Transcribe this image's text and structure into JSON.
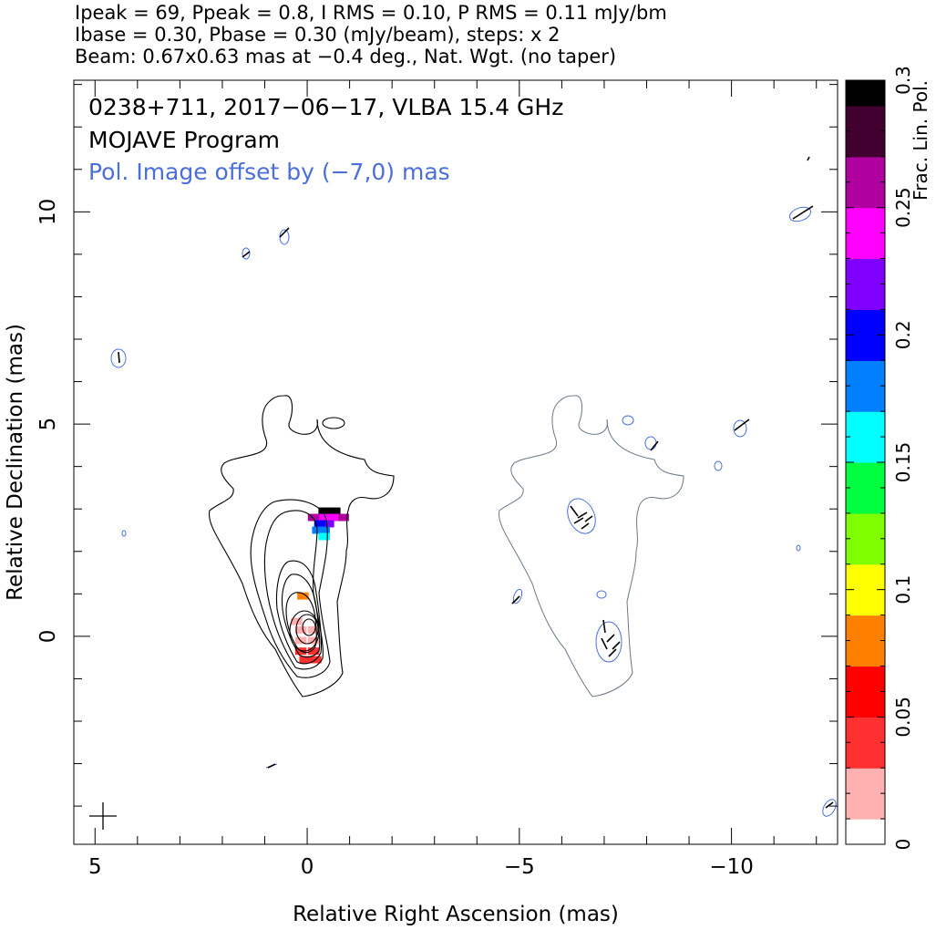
{
  "header": {
    "line1": "Ipeak = 69, Ppeak = 0.8, I RMS = 0.10, P RMS = 0.11 mJy/bm",
    "line2": "Ibase = 0.30, Pbase = 0.30 (mJy/beam), steps: x 2",
    "line3": "Beam: 0.67x0.63 mas at −0.4 deg., Nat. Wgt. (no taper)"
  },
  "plot": {
    "title": "0238+711, 2017−06−17, VLBA 15.4 GHz",
    "subtitle": "MOJAVE Program",
    "offset_note": "Pol. Image offset by (−7,0) mas",
    "offset_note_color": "#4a6fd8"
  },
  "chart_data": {
    "type": "contour",
    "xlabel": "Relative Right Ascension (mas)",
    "ylabel": "Relative Declination (mas)",
    "xlim": [
      5.5,
      -12.5
    ],
    "ylim": [
      -4.9,
      13.1
    ],
    "x_ticks": [
      5,
      0,
      -5,
      -10
    ],
    "x_tick_labels": [
      "5",
      "0",
      "−5",
      "−10"
    ],
    "y_ticks": [
      10,
      5,
      0
    ],
    "y_tick_labels": [
      "10",
      "5",
      "0"
    ],
    "total_intensity": {
      "peak_mJy_per_beam": 69,
      "base_mJy_per_beam": 0.3,
      "contour_step_factor": 2,
      "contour_color": "#000000",
      "core_position_mas": [
        0,
        0
      ],
      "jet_direction": "north"
    },
    "polarization": {
      "peak_mJy_per_beam": 0.8,
      "base_mJy_per_beam": 0.3,
      "image_offset_mas": [
        -7,
        0
      ],
      "contour_color": "#4a6fd8",
      "evpa_color": "#000000"
    },
    "colorbar": {
      "label": "Frac. Lin. Pol.",
      "range": [
        0,
        0.3
      ],
      "ticks": [
        0,
        0.05,
        0.1,
        0.15,
        0.2,
        0.25,
        0.3
      ],
      "tick_labels": [
        "0",
        "0.05",
        "0.1",
        "0.15",
        "0.2",
        "0.25",
        "0.3"
      ],
      "colors": [
        "#ffffff",
        "#ffb0b0",
        "#ff3030",
        "#ff0000",
        "#ff7f00",
        "#ffff00",
        "#7fff00",
        "#00ff40",
        "#00ffff",
        "#007fff",
        "#0000ff",
        "#8000ff",
        "#ff00ff",
        "#b000a0",
        "#400030",
        "#000000"
      ]
    },
    "frac_pol_pixels": [
      {
        "x": -0.65,
        "y": 2.95,
        "v": 0.3
      },
      {
        "x": -0.4,
        "y": 2.95,
        "v": 0.3
      },
      {
        "x": -0.85,
        "y": 2.8,
        "v": 0.26
      },
      {
        "x": -0.6,
        "y": 2.8,
        "v": 0.24
      },
      {
        "x": -0.35,
        "y": 2.8,
        "v": 0.23
      },
      {
        "x": -0.15,
        "y": 2.8,
        "v": 0.26
      },
      {
        "x": -0.5,
        "y": 2.65,
        "v": 0.21
      },
      {
        "x": -0.3,
        "y": 2.65,
        "v": 0.2
      },
      {
        "x": -0.4,
        "y": 2.5,
        "v": 0.17
      },
      {
        "x": -0.25,
        "y": 2.5,
        "v": 0.18
      },
      {
        "x": -0.4,
        "y": 2.35,
        "v": 0.15
      },
      {
        "x": 0.1,
        "y": 0.95,
        "v": 0.07
      },
      {
        "x": 0.25,
        "y": 0.35,
        "v": 0.02
      },
      {
        "x": 0.15,
        "y": 0.15,
        "v": 0.01
      },
      {
        "x": -0.15,
        "y": 0.15,
        "v": 0.01
      },
      {
        "x": 0.15,
        "y": -0.1,
        "v": 0.015
      },
      {
        "x": -0.15,
        "y": -0.1,
        "v": 0.01
      },
      {
        "x": 0.15,
        "y": -0.35,
        "v": 0.035
      },
      {
        "x": -0.15,
        "y": -0.35,
        "v": 0.03
      },
      {
        "x": 0.05,
        "y": -0.55,
        "v": 0.045
      },
      {
        "x": -0.2,
        "y": -0.55,
        "v": 0.045
      }
    ]
  }
}
